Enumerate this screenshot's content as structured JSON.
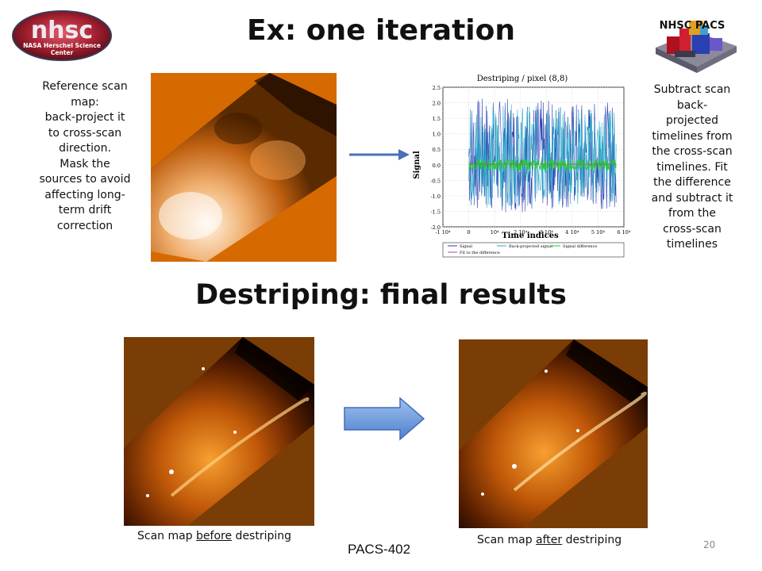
{
  "slide": {
    "title": "Ex: one iteration",
    "subtitle": "Destriping: final results",
    "number": "20",
    "footer": "PACS-402"
  },
  "logos": {
    "nhsc_text": "nhsc",
    "nhsc_sub1": "NASA Herschel Science",
    "nhsc_sub2": "Center",
    "pacs_label": "NHSC PACS"
  },
  "notes": {
    "left": [
      "Reference scan",
      "map:",
      "back-project it",
      "to cross-scan",
      "direction.",
      "Mask the",
      "sources to avoid",
      "affecting long-",
      "term drift",
      "correction"
    ],
    "right": [
      "Subtract scan",
      "back-",
      "projected",
      "timelines from",
      "the cross-scan",
      "timelines.  Fit",
      "the difference",
      "and subtract it",
      "from the",
      "cross-scan",
      "timelines"
    ]
  },
  "captions": {
    "before": {
      "prefix": "Scan map ",
      "underlined": "before",
      "suffix": " destriping"
    },
    "after": {
      "prefix": "Scan map ",
      "underlined": "after",
      "suffix": " destriping"
    }
  },
  "chart_data": {
    "type": "line",
    "title": "Destriping / pixel (8,8)",
    "xlabel": "Time indices",
    "ylabel": "Signal",
    "x_tick_labels": [
      "-1 10⁴",
      "0",
      "10⁴",
      "2 10⁴",
      "3 10⁴",
      "4 10⁴",
      "5 10⁴",
      "6 10⁴"
    ],
    "y_tick_labels": [
      "2.5",
      "2.0",
      "1.5",
      "1.0",
      "0.5",
      "0.0",
      "-0.5",
      "-1.0",
      "-1.5",
      "-2.0"
    ],
    "xlim": [
      -10000,
      60000
    ],
    "ylim": [
      -2.0,
      2.5
    ],
    "series": [
      {
        "name": "Signal",
        "color": "#2a3fb0"
      },
      {
        "name": "Back-projected signal",
        "color": "#2aa9c9"
      },
      {
        "name": "Signal difference",
        "color": "#22d12a"
      },
      {
        "name": "Fit to the difference",
        "color": "#b04a9a"
      }
    ]
  },
  "colors": {
    "orange_bg": "#d66a00",
    "brown_bg": "#7a3d05",
    "arrow_blue": "#5b8fd6"
  }
}
